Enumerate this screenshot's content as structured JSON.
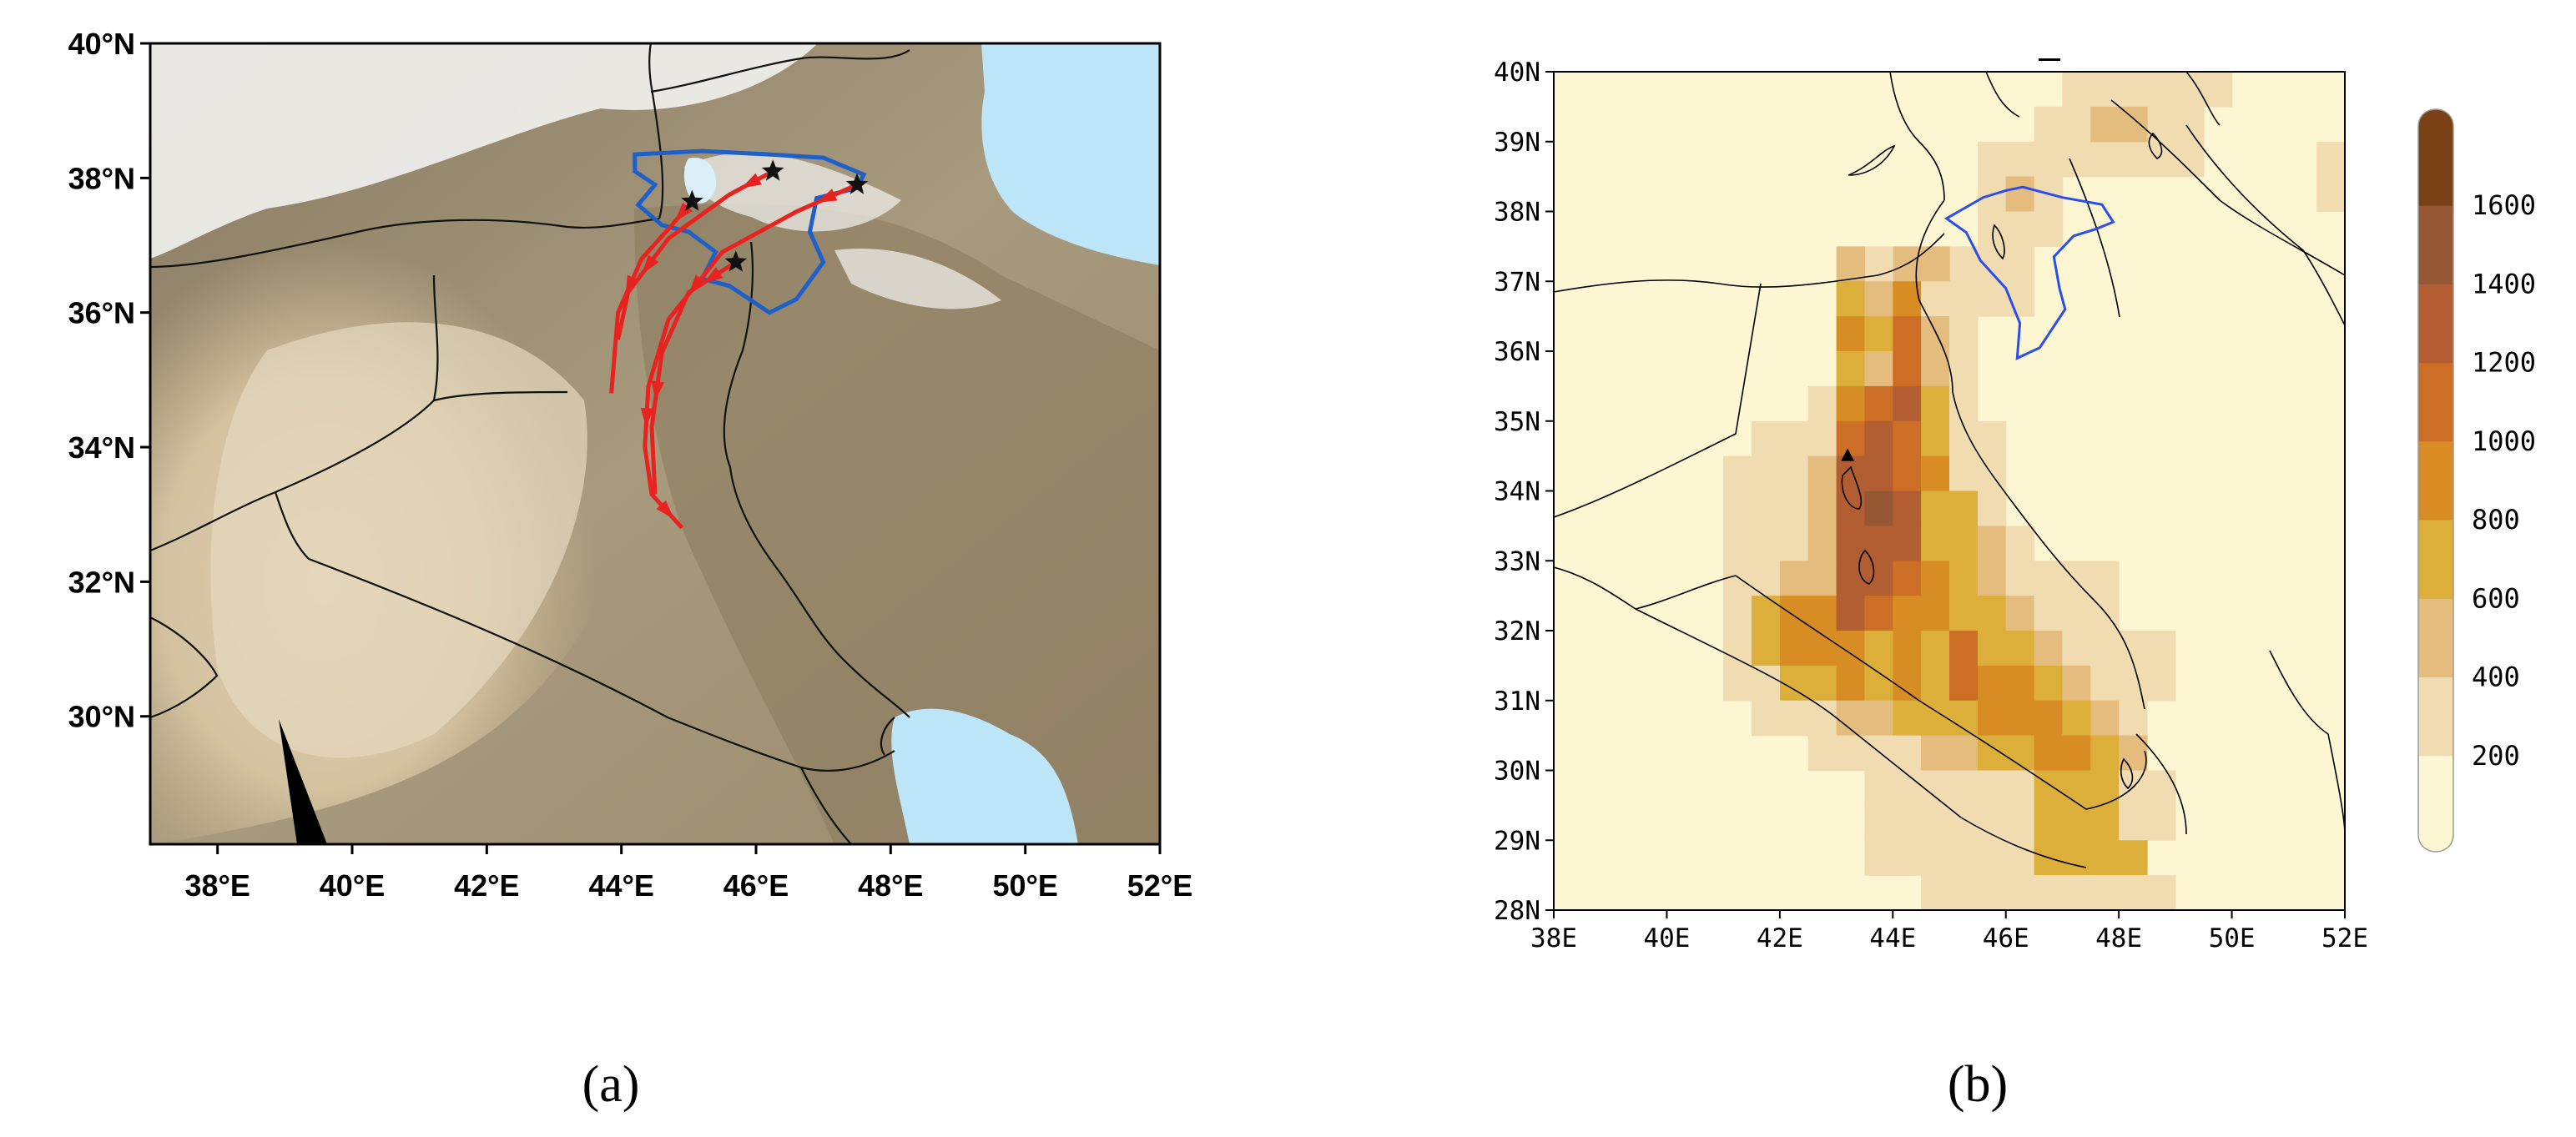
{
  "panel_a": {
    "y_ticks": [
      "40°N",
      "38°N",
      "36°N",
      "34°N",
      "32°N",
      "30°N"
    ],
    "x_ticks": [
      "38°E",
      "40°E",
      "42°E",
      "44°E",
      "46°E",
      "48°E",
      "50°E",
      "52°E"
    ],
    "extent": {
      "lon": [
        37,
        52
      ],
      "lat": [
        28.1,
        40
      ]
    },
    "basin_color": "#1f5fc8",
    "trajectory_color": "#e8231f",
    "trajectories": [
      {
        "lon": [
          45.05,
          44.75,
          44.3,
          43.95,
          43.85
        ],
        "lat": [
          37.65,
          37.3,
          36.8,
          36.0,
          34.8
        ]
      },
      {
        "lon": [
          46.25,
          45.6,
          44.7,
          44.1,
          43.95
        ],
        "lat": [
          38.1,
          37.75,
          37.1,
          36.3,
          35.6
        ]
      },
      {
        "lon": [
          45.7,
          45.0,
          44.6,
          44.45,
          44.5
        ],
        "lat": [
          36.75,
          36.3,
          35.4,
          34.3,
          33.3
        ]
      },
      {
        "lon": [
          47.5,
          46.6,
          45.5,
          44.7,
          44.4,
          44.35,
          44.45,
          44.9
        ],
        "lat": [
          37.9,
          37.5,
          36.9,
          35.9,
          34.9,
          34.0,
          33.3,
          32.8
        ]
      }
    ],
    "start_markers": [
      {
        "lon": 45.05,
        "lat": 37.65
      },
      {
        "lon": 46.25,
        "lat": 38.1
      },
      {
        "lon": 45.7,
        "lat": 36.75
      },
      {
        "lon": 47.5,
        "lat": 37.9
      }
    ],
    "sea_color": "#bde5f8"
  },
  "panel_b": {
    "y_ticks": [
      "40N",
      "39N",
      "38N",
      "37N",
      "36N",
      "35N",
      "34N",
      "33N",
      "32N",
      "31N",
      "30N",
      "29N",
      "28N"
    ],
    "x_ticks": [
      "38E",
      "40E",
      "42E",
      "44E",
      "46E",
      "48E",
      "50E",
      "52E"
    ],
    "extent": {
      "lon": [
        38,
        52
      ],
      "lat": [
        28,
        40
      ]
    },
    "basin_color": "#2a4df0",
    "colorbar": {
      "labels": [
        "1600",
        "1400",
        "1200",
        "1000",
        "800",
        "600",
        "400",
        "200"
      ],
      "colors": [
        "#fdf6d2",
        "#f0dcb0",
        "#e4bc7e",
        "#dcae3a",
        "#d88c24",
        "#cc6e26",
        "#b25e32",
        "#965834",
        "#7a4016"
      ]
    },
    "grid": {
      "lon0": 38,
      "lat0": 28,
      "dlon": 0.5,
      "dlat": 0.5,
      "cells": [
        [
          49,
          39.5,
          1
        ],
        [
          49,
          39,
          1
        ],
        [
          48.5,
          39.5,
          1
        ],
        [
          48.5,
          39,
          1
        ],
        [
          48,
          39.5,
          1
        ],
        [
          48,
          39,
          1
        ],
        [
          47.5,
          39.5,
          1
        ],
        [
          47.5,
          39,
          1
        ],
        [
          47,
          39.5,
          1
        ],
        [
          47,
          39,
          1
        ],
        [
          47.5,
          38.5,
          1
        ],
        [
          47,
          38.5,
          1
        ],
        [
          48,
          38.5,
          1
        ],
        [
          48.5,
          38.5,
          1
        ],
        [
          49,
          38.5,
          1
        ],
        [
          49.5,
          39.5,
          1
        ],
        [
          51.5,
          38.5,
          1
        ],
        [
          51.5,
          38,
          1
        ],
        [
          48,
          39,
          2
        ],
        [
          47.5,
          39,
          2
        ],
        [
          46.5,
          39,
          1
        ],
        [
          46.5,
          38.5,
          1
        ],
        [
          46,
          38.5,
          1
        ],
        [
          45.5,
          38.5,
          1
        ],
        [
          45.5,
          38,
          1
        ],
        [
          46,
          38,
          2
        ],
        [
          46.5,
          38,
          1
        ],
        [
          45.5,
          37.5,
          1
        ],
        [
          46,
          37.5,
          1
        ],
        [
          46.5,
          37.5,
          1
        ],
        [
          45,
          37,
          1
        ],
        [
          45.5,
          37,
          1
        ],
        [
          46,
          37,
          1
        ],
        [
          44.5,
          37,
          2
        ],
        [
          45,
          36.5,
          1
        ],
        [
          45.5,
          36.5,
          1
        ],
        [
          46,
          36.5,
          1
        ],
        [
          44,
          37,
          2
        ],
        [
          43.5,
          37,
          1
        ],
        [
          43,
          37,
          2
        ],
        [
          43,
          36.5,
          3
        ],
        [
          43.5,
          36.5,
          2
        ],
        [
          44,
          36.5,
          4
        ],
        [
          44.5,
          36.5,
          1
        ],
        [
          43,
          36,
          4
        ],
        [
          43.5,
          36,
          3
        ],
        [
          44,
          36,
          5
        ],
        [
          44.5,
          36,
          2
        ],
        [
          45,
          36,
          1
        ],
        [
          43,
          35.5,
          3
        ],
        [
          43.5,
          35.5,
          2
        ],
        [
          44,
          35.5,
          5
        ],
        [
          44.5,
          35.5,
          2
        ],
        [
          45,
          35.5,
          1
        ],
        [
          42.5,
          35,
          1
        ],
        [
          43,
          35,
          4
        ],
        [
          43.5,
          35,
          5
        ],
        [
          44,
          35,
          6
        ],
        [
          44.5,
          35,
          3
        ],
        [
          45,
          35,
          1
        ],
        [
          41.5,
          34.5,
          1
        ],
        [
          42,
          34.5,
          1
        ],
        [
          42.5,
          34.5,
          1
        ],
        [
          43,
          34.5,
          5
        ],
        [
          43.5,
          34.5,
          6
        ],
        [
          44,
          34.5,
          5
        ],
        [
          44.5,
          34.5,
          3
        ],
        [
          45,
          34.5,
          1
        ],
        [
          45.5,
          34.5,
          1
        ],
        [
          41,
          34,
          1
        ],
        [
          41.5,
          34,
          1
        ],
        [
          42,
          34,
          1
        ],
        [
          42.5,
          34,
          2
        ],
        [
          43,
          34,
          6
        ],
        [
          43.5,
          34,
          6
        ],
        [
          44,
          34,
          5
        ],
        [
          44.5,
          34,
          4
        ],
        [
          45,
          34,
          1
        ],
        [
          45.5,
          34,
          1
        ],
        [
          41,
          33.5,
          1
        ],
        [
          41.5,
          33.5,
          1
        ],
        [
          42,
          33.5,
          1
        ],
        [
          42.5,
          33.5,
          2
        ],
        [
          43,
          33.5,
          6
        ],
        [
          43.5,
          33.5,
          7
        ],
        [
          44,
          33.5,
          6
        ],
        [
          44.5,
          33.5,
          3
        ],
        [
          45,
          33.5,
          3
        ],
        [
          45.5,
          33.5,
          1
        ],
        [
          41,
          33,
          1
        ],
        [
          41.5,
          33,
          1
        ],
        [
          42,
          33,
          1
        ],
        [
          42.5,
          33,
          2
        ],
        [
          43,
          33,
          6
        ],
        [
          43.5,
          33,
          6
        ],
        [
          44,
          33,
          6
        ],
        [
          44.5,
          33,
          3
        ],
        [
          45,
          33,
          3
        ],
        [
          45.5,
          33,
          2
        ],
        [
          46,
          33,
          1
        ],
        [
          41,
          32.5,
          1
        ],
        [
          41.5,
          32.5,
          1
        ],
        [
          42,
          32.5,
          2
        ],
        [
          42.5,
          32.5,
          2
        ],
        [
          43,
          32.5,
          6
        ],
        [
          43.5,
          32.5,
          6
        ],
        [
          44,
          32.5,
          5
        ],
        [
          44.5,
          32.5,
          4
        ],
        [
          45,
          32.5,
          3
        ],
        [
          45.5,
          32.5,
          2
        ],
        [
          46,
          32.5,
          1
        ],
        [
          46.5,
          32.5,
          1
        ],
        [
          47,
          32.5,
          1
        ],
        [
          47.5,
          32.5,
          1
        ],
        [
          41,
          32,
          1
        ],
        [
          41.5,
          32,
          3
        ],
        [
          42,
          32,
          4
        ],
        [
          42.5,
          32,
          4
        ],
        [
          43,
          32,
          6
        ],
        [
          43.5,
          32,
          5
        ],
        [
          44,
          32,
          4
        ],
        [
          44.5,
          32,
          4
        ],
        [
          45,
          32,
          3
        ],
        [
          45.5,
          32,
          3
        ],
        [
          46,
          32,
          2
        ],
        [
          46.5,
          32,
          1
        ],
        [
          47,
          32,
          1
        ],
        [
          47.5,
          32,
          1
        ],
        [
          41,
          31.5,
          1
        ],
        [
          41.5,
          31.5,
          3
        ],
        [
          42,
          31.5,
          4
        ],
        [
          42.5,
          31.5,
          4
        ],
        [
          43,
          31.5,
          4
        ],
        [
          43.5,
          31.5,
          3
        ],
        [
          44,
          31.5,
          4
        ],
        [
          44.5,
          31.5,
          3
        ],
        [
          45,
          31.5,
          5
        ],
        [
          45.5,
          31.5,
          3
        ],
        [
          46,
          31.5,
          3
        ],
        [
          46.5,
          31.5,
          2
        ],
        [
          47,
          31.5,
          1
        ],
        [
          47.5,
          31.5,
          1
        ],
        [
          48,
          31.5,
          1
        ],
        [
          48.5,
          31.5,
          1
        ],
        [
          41,
          31,
          1
        ],
        [
          41.5,
          31,
          1
        ],
        [
          42,
          31,
          3
        ],
        [
          42.5,
          31,
          3
        ],
        [
          43,
          31,
          4
        ],
        [
          43.5,
          31,
          3
        ],
        [
          44,
          31,
          4
        ],
        [
          44.5,
          31,
          3
        ],
        [
          45,
          31,
          5
        ],
        [
          45.5,
          31,
          4
        ],
        [
          46,
          31,
          4
        ],
        [
          46.5,
          31,
          3
        ],
        [
          47,
          31,
          2
        ],
        [
          47.5,
          31,
          1
        ],
        [
          48,
          31,
          1
        ],
        [
          48.5,
          31,
          1
        ],
        [
          41.5,
          30.5,
          1
        ],
        [
          42,
          30.5,
          1
        ],
        [
          42.5,
          30.5,
          1
        ],
        [
          43,
          30.5,
          2
        ],
        [
          43.5,
          30.5,
          2
        ],
        [
          44,
          30.5,
          3
        ],
        [
          44.5,
          30.5,
          3
        ],
        [
          45,
          30.5,
          3
        ],
        [
          45.5,
          30.5,
          4
        ],
        [
          46,
          30.5,
          4
        ],
        [
          46.5,
          30.5,
          4
        ],
        [
          47,
          30.5,
          3
        ],
        [
          47.5,
          30.5,
          2
        ],
        [
          48,
          30.5,
          1
        ],
        [
          42.5,
          30,
          1
        ],
        [
          43,
          30,
          1
        ],
        [
          43.5,
          30,
          1
        ],
        [
          44,
          30,
          1
        ],
        [
          44.5,
          30,
          2
        ],
        [
          45,
          30,
          2
        ],
        [
          45.5,
          30,
          3
        ],
        [
          46,
          30,
          3
        ],
        [
          46.5,
          30,
          4
        ],
        [
          47,
          30,
          4
        ],
        [
          47.5,
          30,
          3
        ],
        [
          48,
          30,
          2
        ],
        [
          43.5,
          29.5,
          1
        ],
        [
          44,
          29.5,
          1
        ],
        [
          44.5,
          29.5,
          1
        ],
        [
          45,
          29.5,
          1
        ],
        [
          45.5,
          29.5,
          1
        ],
        [
          46,
          29.5,
          1
        ],
        [
          46.5,
          29.5,
          3
        ],
        [
          47,
          29.5,
          3
        ],
        [
          47.5,
          29.5,
          3
        ],
        [
          48,
          29.5,
          1
        ],
        [
          48.5,
          29.5,
          1
        ],
        [
          43.5,
          29,
          1
        ],
        [
          44,
          29,
          1
        ],
        [
          44.5,
          29,
          1
        ],
        [
          45,
          29,
          1
        ],
        [
          45.5,
          29,
          1
        ],
        [
          46,
          29,
          1
        ],
        [
          46.5,
          29,
          3
        ],
        [
          47,
          29,
          3
        ],
        [
          47.5,
          29,
          3
        ],
        [
          48,
          29,
          1
        ],
        [
          48.5,
          29,
          1
        ],
        [
          43.5,
          28.5,
          1
        ],
        [
          44,
          28.5,
          1
        ],
        [
          44.5,
          28.5,
          1
        ],
        [
          45,
          28.5,
          1
        ],
        [
          45.5,
          28.5,
          1
        ],
        [
          46,
          28.5,
          1
        ],
        [
          46.5,
          28.5,
          3
        ],
        [
          47,
          28.5,
          3
        ],
        [
          47.5,
          28.5,
          3
        ],
        [
          48,
          28.5,
          3
        ],
        [
          44.5,
          28,
          1
        ],
        [
          45,
          28,
          1
        ],
        [
          45.5,
          28,
          1
        ],
        [
          46,
          28,
          1
        ],
        [
          46.5,
          28,
          1
        ],
        [
          47,
          28,
          1
        ],
        [
          47.5,
          28,
          1
        ],
        [
          48,
          28,
          1
        ],
        [
          48.5,
          28,
          1
        ]
      ]
    },
    "source_marker": {
      "lon": 43.2,
      "lat": 34.5
    }
  },
  "captions": {
    "a": "(a)",
    "b": "(b)"
  }
}
